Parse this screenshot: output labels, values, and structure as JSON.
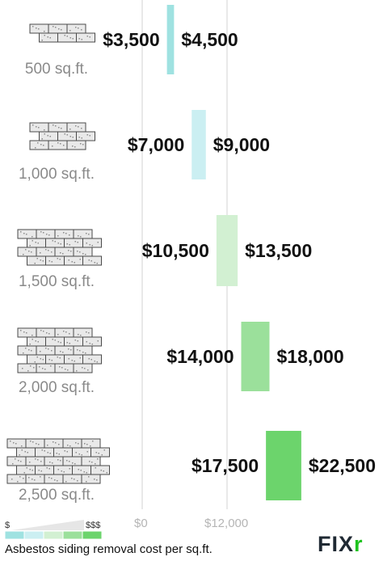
{
  "chart_data": {
    "type": "bar",
    "orientation": "horizontal-range",
    "categories": [
      "500 sq.ft.",
      "1,000 sq.ft.",
      "1,500 sq.ft.",
      "2,000 sq.ft.",
      "2,500 sq.ft."
    ],
    "series": [
      {
        "low": 3500,
        "high": 4500,
        "low_label": "$3,500",
        "high_label": "$4,500",
        "color": "#9fe2e1"
      },
      {
        "low": 7000,
        "high": 9000,
        "low_label": "$7,000",
        "high_label": "$9,000",
        "color": "#cbeff2"
      },
      {
        "low": 10500,
        "high": 13500,
        "low_label": "$10,500",
        "high_label": "$13,500",
        "color": "#d2f0d2"
      },
      {
        "low": 14000,
        "high": 18000,
        "low_label": "$14,000",
        "high_label": "$18,000",
        "color": "#9be09b"
      },
      {
        "low": 17500,
        "high": 22500,
        "low_label": "$17,500",
        "high_label": "$22,500",
        "color": "#6cd46c"
      }
    ],
    "ticks": [
      {
        "value": 0,
        "label": "$0"
      },
      {
        "value": 12000,
        "label": "$12,000"
      }
    ],
    "grid": true
  },
  "legend": {
    "low_label": "$",
    "high_label": "$$$",
    "colors": [
      "#9fe2e1",
      "#cbeff2",
      "#d2f0d2",
      "#9be09b",
      "#6cd46c"
    ]
  },
  "caption": "Asbestos siding removal cost per sq.ft.",
  "logo": {
    "main": "FIX",
    "accent": "r"
  }
}
